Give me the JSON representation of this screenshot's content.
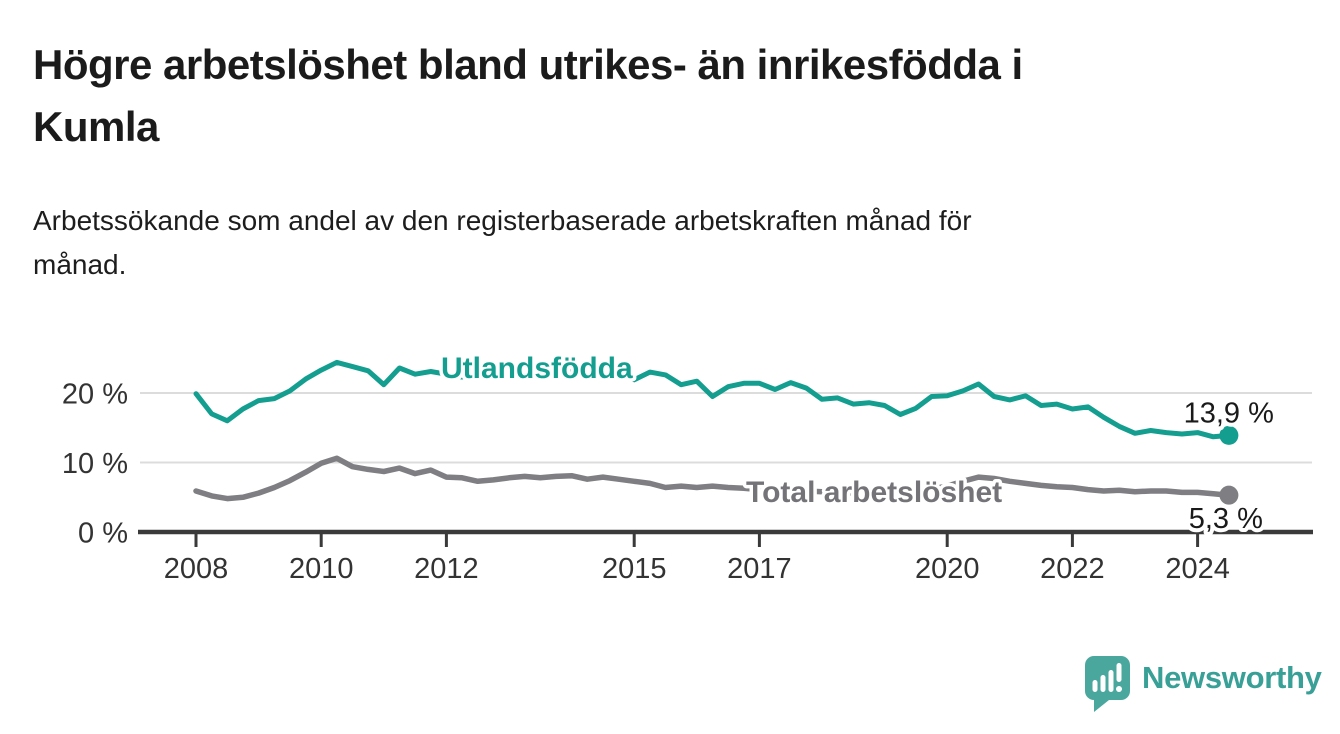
{
  "header": {
    "title": "Högre arbetslöshet bland utrikes- än inrikesfödda i\nKumla",
    "subtitle": "Arbetssökande som andel av den registerbaserade arbetskraften månad för\nmånad."
  },
  "footer": {
    "brand": "Newsworthy",
    "logo_icon": "speech-bubble-bar-chart-exclamation"
  },
  "colors": {
    "accent_teal": "#149e90",
    "series_gray": "#7f7f83",
    "series_gray_label": "#737378",
    "text_dark": "#1a1a1a",
    "axis": "#3a3a3a",
    "axis_text": "#333333",
    "gridline": "#dcdcdc",
    "halo": "#ffffff",
    "logo_teal": "#4aa79e",
    "logo_text_teal": "#38a096"
  },
  "chart_data": {
    "type": "line",
    "title": "Högre arbetslöshet bland utrikes- än inrikesfödda i Kumla",
    "subtitle": "Arbetssökande som andel av den registerbaserade arbetskraften månad för månad.",
    "unit": "%",
    "xlabel": "",
    "ylabel": "",
    "grid": "horizontal-y",
    "legend": "direct-labels-on-lines",
    "x_start": 2008,
    "x_step_years": 0.25,
    "x_end": 2024.5,
    "ylim": [
      0,
      27
    ],
    "yticks": [
      {
        "value": 0,
        "label": "0 %"
      },
      {
        "value": 10,
        "label": "10 %"
      },
      {
        "value": 20,
        "label": "20 %"
      }
    ],
    "xticks": [
      {
        "value": 2008,
        "label": "2008"
      },
      {
        "value": 2010,
        "label": "2010"
      },
      {
        "value": 2012,
        "label": "2012"
      },
      {
        "value": 2015,
        "label": "2015"
      },
      {
        "value": 2017,
        "label": "2017"
      },
      {
        "value": 2020,
        "label": "2020"
      },
      {
        "value": 2022,
        "label": "2022"
      },
      {
        "value": 2024,
        "label": "2024"
      }
    ],
    "series": [
      {
        "id": "utlandsfodda",
        "name": "Utlandsfödda",
        "color": "#149e90",
        "label_color": "#149e90",
        "end_label": "13,9 %",
        "end_value": 13.9,
        "values": [
          19.9,
          17.0,
          16.0,
          17.7,
          18.9,
          19.2,
          20.3,
          22.0,
          23.3,
          24.4,
          23.8,
          23.2,
          21.2,
          23.6,
          22.7,
          23.1,
          22.7,
          22.3,
          22.9,
          22.4,
          22.9,
          23.2,
          22.3,
          22.8,
          23.2,
          23.6,
          22.2,
          23.3,
          21.9,
          23.0,
          22.6,
          21.2,
          21.7,
          19.5,
          20.9,
          21.4,
          21.4,
          20.5,
          21.5,
          20.7,
          19.1,
          19.3,
          18.4,
          18.6,
          18.2,
          16.9,
          17.8,
          19.5,
          19.6,
          20.3,
          21.3,
          19.5,
          19.0,
          19.6,
          18.2,
          18.4,
          17.7,
          18.0,
          16.5,
          15.2,
          14.2,
          14.6,
          14.3,
          14.1,
          14.3,
          13.7,
          13.9
        ]
      },
      {
        "id": "total-arbetsloshet",
        "name": "Total arbetslöshet",
        "color": "#7f7f83",
        "label_color": "#737378",
        "end_label": "5,3 %",
        "end_value": 5.3,
        "values": [
          5.9,
          5.2,
          4.8,
          5.0,
          5.6,
          6.4,
          7.4,
          8.6,
          9.9,
          10.6,
          9.4,
          9.0,
          8.7,
          9.2,
          8.4,
          8.9,
          7.9,
          7.8,
          7.3,
          7.5,
          7.8,
          8.0,
          7.8,
          8.0,
          8.1,
          7.6,
          7.9,
          7.6,
          7.3,
          7.0,
          6.4,
          6.6,
          6.4,
          6.6,
          6.4,
          6.3,
          6.1,
          6.0,
          6.1,
          5.9,
          5.8,
          5.7,
          5.6,
          5.7,
          5.7,
          5.8,
          5.9,
          6.2,
          6.6,
          7.3,
          7.9,
          7.7,
          7.3,
          7.0,
          6.7,
          6.5,
          6.4,
          6.1,
          5.9,
          6.0,
          5.8,
          5.9,
          5.9,
          5.7,
          5.7,
          5.5,
          5.3
        ]
      }
    ]
  }
}
